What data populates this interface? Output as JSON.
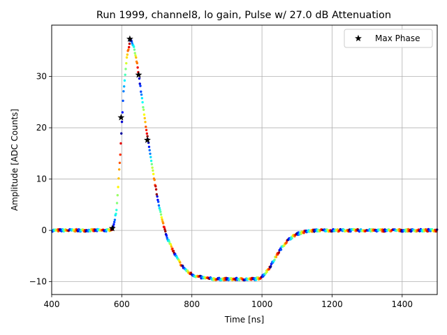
{
  "chart_data": {
    "type": "scatter",
    "title": "Run 1999, channel8, lo gain, Pulse w/ 27.0 dB Attenuation",
    "xlabel": "Time [ns]",
    "ylabel": "Amplitude [ADC Counts]",
    "xlim": [
      400,
      1500
    ],
    "ylim": [
      -12.5,
      40
    ],
    "xticks": [
      400,
      600,
      800,
      1000,
      1200,
      1400
    ],
    "xtick_labels": [
      "400",
      "600",
      "800",
      "1000",
      "1200",
      "1400"
    ],
    "yticks": [
      -10,
      0,
      10,
      20,
      30
    ],
    "ytick_labels": [
      "−10",
      "0",
      "10",
      "20",
      "30"
    ],
    "grid": true,
    "legend": {
      "position": "top-right",
      "entries": [
        "Max Phase"
      ]
    },
    "colormap": "jet",
    "waveform": {
      "x": [
        400,
        560,
        575,
        585,
        595,
        605,
        615,
        625,
        635,
        645,
        655,
        665,
        675,
        685,
        700,
        715,
        730,
        750,
        770,
        790,
        810,
        830,
        850,
        870,
        890,
        910,
        930,
        950,
        970,
        990,
        1000,
        1010,
        1020,
        1030,
        1040,
        1050,
        1060,
        1070,
        1080,
        1090,
        1100,
        1120,
        1140,
        1160,
        1180,
        1200,
        1250,
        1300,
        1350,
        1400,
        1450,
        1500
      ],
      "y": [
        0,
        0,
        0.3,
        4,
        14,
        27,
        34,
        37.2,
        35.5,
        32,
        27,
        22,
        17.5,
        13,
        7,
        2,
        -1.5,
        -4.5,
        -6.8,
        -8.2,
        -8.9,
        -9.2,
        -9.4,
        -9.5,
        -9.5,
        -9.5,
        -9.5,
        -9.5,
        -9.5,
        -9.4,
        -9,
        -8.3,
        -7.4,
        -6.3,
        -5.1,
        -4,
        -3.0,
        -2.2,
        -1.6,
        -1.1,
        -0.7,
        -0.3,
        -0.1,
        0,
        0,
        0,
        0,
        0,
        0,
        0,
        0,
        0
      ]
    },
    "max_phase_points": {
      "name": "Max Phase",
      "x": [
        573,
        598,
        623,
        648,
        673
      ],
      "y": [
        0.4,
        22,
        37.3,
        30.3,
        17.6
      ]
    },
    "colors": {
      "grid": "#b0b0b0",
      "marker": "#000000"
    }
  }
}
